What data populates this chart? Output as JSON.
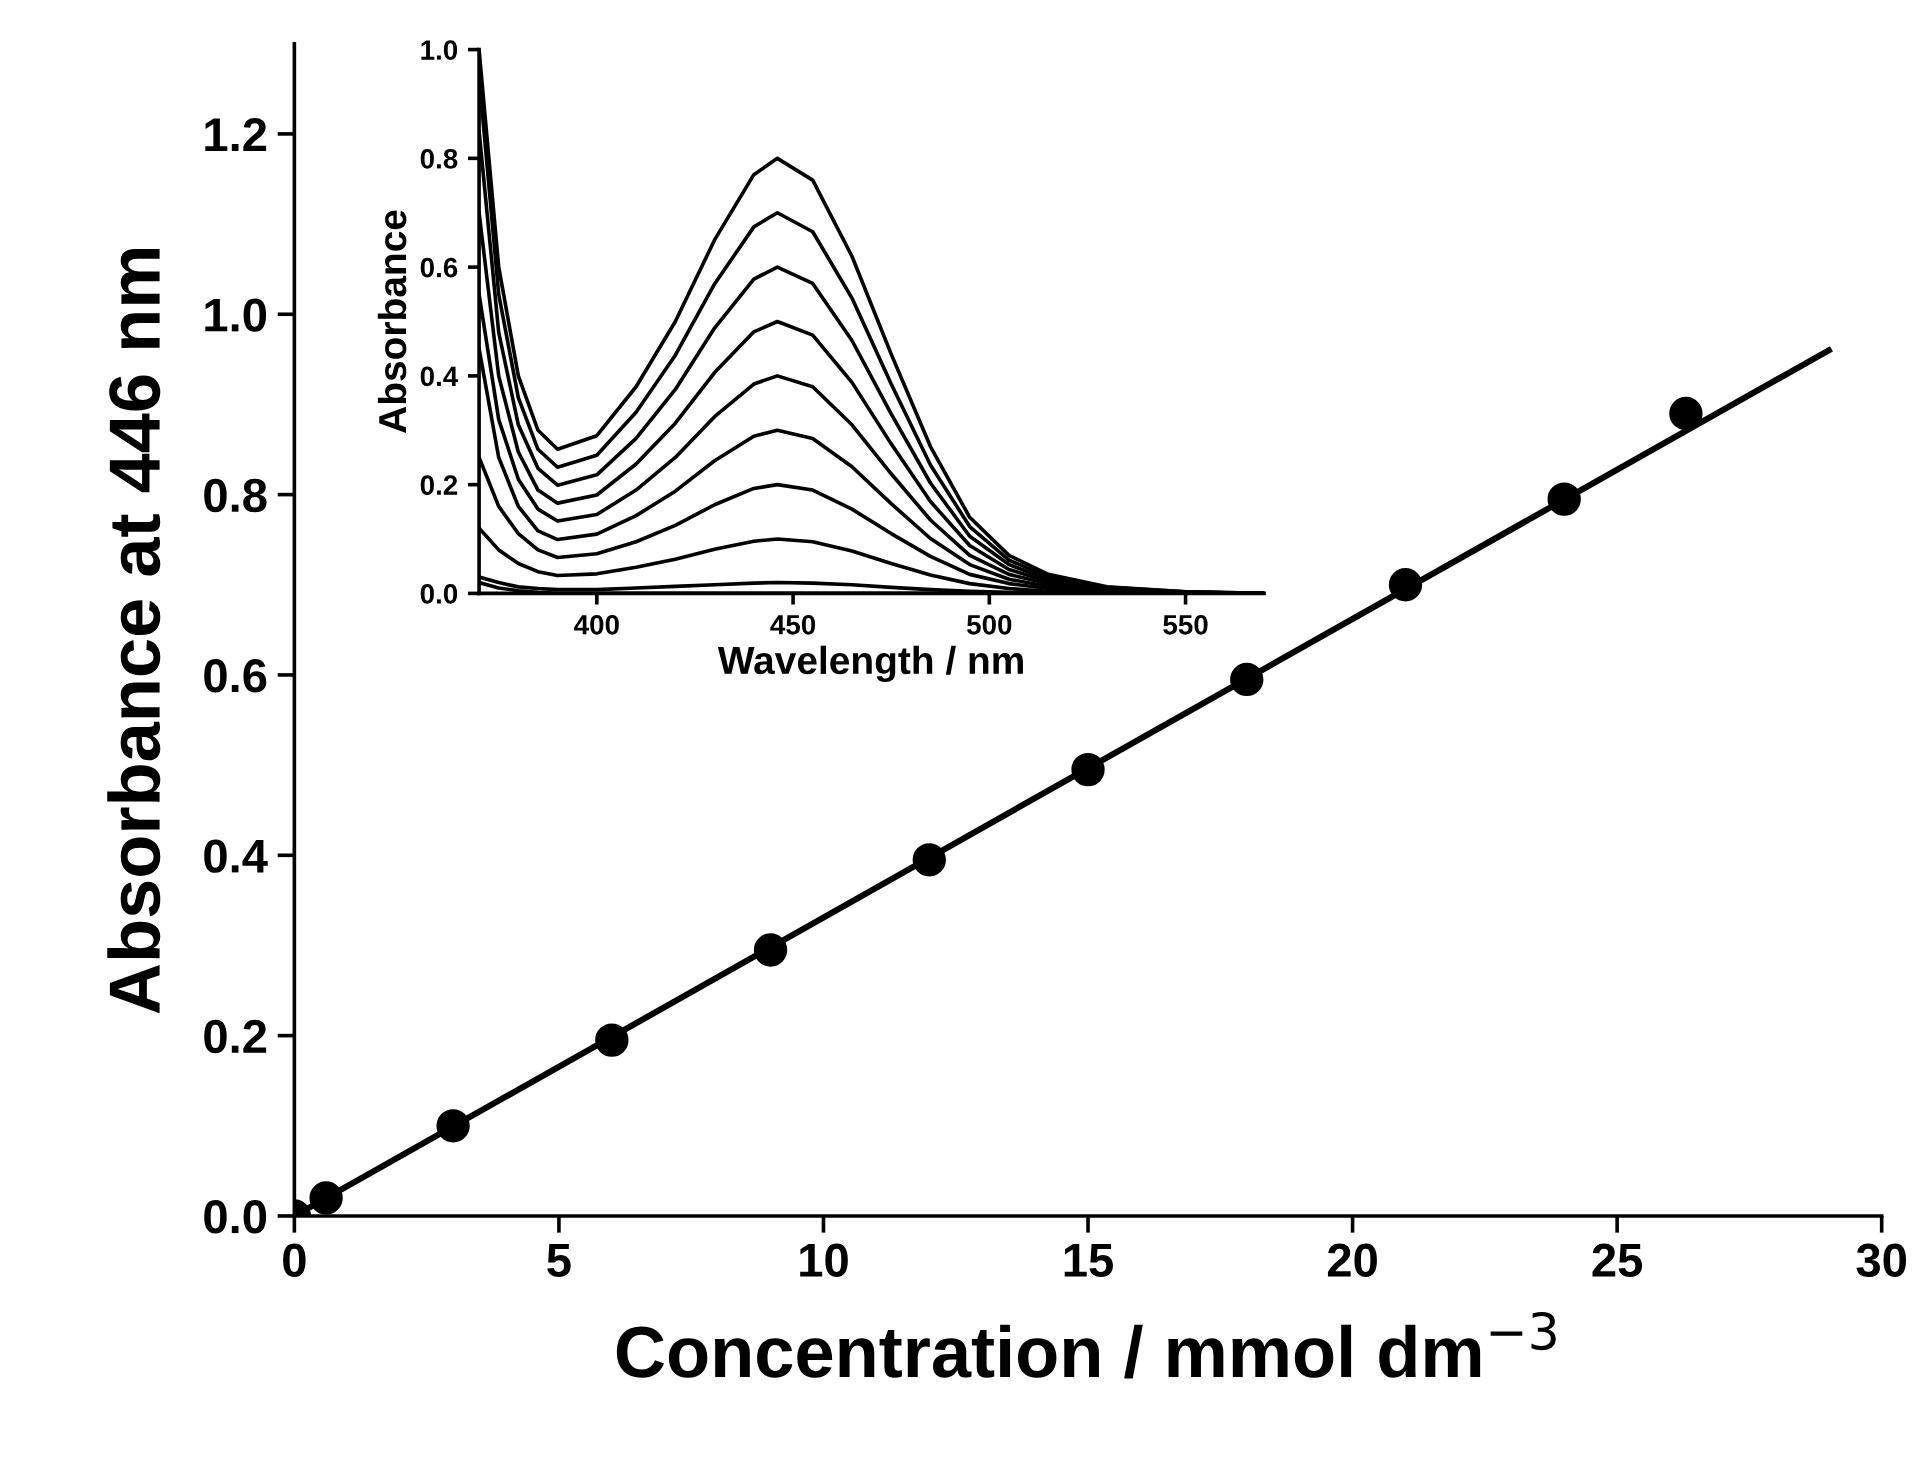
{
  "chart_data": [
    {
      "type": "scatter",
      "xlabel": "Concentration / mmol dm$^{−3}$",
      "ylabel": "Absorbance at 446 nm",
      "xlim": [
        0,
        30
      ],
      "ylim": [
        0,
        1.3
      ],
      "xticks": [
        0,
        5,
        10,
        15,
        20,
        25,
        30
      ],
      "yticks": [
        {
          "value": 0,
          "label": "0.0"
        },
        {
          "value": 0.2,
          "label": "0.2"
        },
        {
          "value": 0.4,
          "label": "0.4"
        },
        {
          "value": 0.6,
          "label": "0.6"
        },
        {
          "value": 0.8,
          "label": "0.8"
        },
        {
          "value": 1.0,
          "label": "1.0"
        },
        {
          "value": 1.2,
          "label": "1.2"
        }
      ],
      "grid": false,
      "legend": false,
      "series": [
        {
          "type": "scatter",
          "marker": "circle",
          "color": "#000000",
          "x": [
            0,
            0.6,
            3,
            6,
            9,
            12,
            15,
            18,
            21,
            24,
            26.3
          ],
          "values": [
            0,
            0.02,
            0.1,
            0.195,
            0.295,
            0.395,
            0.495,
            0.595,
            0.7,
            0.795,
            0.89
          ]
        },
        {
          "type": "line",
          "marker": "none",
          "color": "#000000",
          "x": [
            0,
            29
          ],
          "values": [
            0,
            0.96
          ]
        }
      ]
    },
    {
      "type": "line",
      "xlabel": "Wavelength / nm",
      "ylabel": "Absorbance",
      "xlim": [
        370,
        570
      ],
      "ylim": [
        0,
        1.0
      ],
      "xticks": [
        400,
        450,
        500,
        550
      ],
      "yticks": [
        {
          "value": 0,
          "label": "0.0"
        },
        {
          "value": 0.2,
          "label": "0.2"
        },
        {
          "value": 0.4,
          "label": "0.4"
        },
        {
          "value": 0.6,
          "label": "0.6"
        },
        {
          "value": 0.8,
          "label": "0.8"
        },
        {
          "value": 1.0,
          "label": "1.0"
        }
      ],
      "grid": false,
      "legend": false,
      "marker": "none",
      "x": [
        370,
        375,
        380,
        385,
        390,
        400,
        410,
        420,
        430,
        440,
        446,
        455,
        465,
        475,
        485,
        495,
        505,
        515,
        530,
        550,
        570
      ],
      "series": [
        {
          "color": "#000000",
          "values": [
            1.0,
            0.6,
            0.4,
            0.3,
            0.265,
            0.29,
            0.38,
            0.5,
            0.65,
            0.77,
            0.8,
            0.76,
            0.62,
            0.44,
            0.27,
            0.14,
            0.07,
            0.035,
            0.012,
            0.003,
            0.0
          ]
        },
        {
          "color": "#000000",
          "values": [
            0.95,
            0.55,
            0.36,
            0.265,
            0.232,
            0.254,
            0.333,
            0.438,
            0.569,
            0.674,
            0.7,
            0.665,
            0.543,
            0.385,
            0.236,
            0.123,
            0.061,
            0.031,
            0.011,
            0.003,
            0.0
          ]
        },
        {
          "color": "#000000",
          "values": [
            0.85,
            0.48,
            0.31,
            0.23,
            0.199,
            0.218,
            0.285,
            0.375,
            0.488,
            0.578,
            0.6,
            0.57,
            0.465,
            0.33,
            0.203,
            0.105,
            0.053,
            0.026,
            0.009,
            0.002,
            0.0
          ]
        },
        {
          "color": "#000000",
          "values": [
            0.7,
            0.4,
            0.26,
            0.19,
            0.166,
            0.181,
            0.238,
            0.313,
            0.406,
            0.481,
            0.5,
            0.475,
            0.388,
            0.275,
            0.169,
            0.088,
            0.044,
            0.022,
            0.008,
            0.002,
            0.0
          ]
        },
        {
          "color": "#000000",
          "values": [
            0.55,
            0.32,
            0.21,
            0.155,
            0.133,
            0.145,
            0.19,
            0.25,
            0.325,
            0.385,
            0.4,
            0.38,
            0.31,
            0.22,
            0.135,
            0.07,
            0.035,
            0.018,
            0.006,
            0.002,
            0.0
          ]
        },
        {
          "color": "#000000",
          "values": [
            0.45,
            0.25,
            0.16,
            0.115,
            0.099,
            0.109,
            0.143,
            0.188,
            0.244,
            0.289,
            0.3,
            0.285,
            0.233,
            0.165,
            0.101,
            0.053,
            0.026,
            0.013,
            0.005,
            0.001,
            0.0
          ]
        },
        {
          "color": "#000000",
          "values": [
            0.25,
            0.16,
            0.11,
            0.08,
            0.066,
            0.073,
            0.095,
            0.125,
            0.163,
            0.193,
            0.2,
            0.19,
            0.155,
            0.11,
            0.068,
            0.035,
            0.018,
            0.009,
            0.003,
            0.001,
            0.0
          ]
        },
        {
          "color": "#000000",
          "values": [
            0.12,
            0.08,
            0.055,
            0.04,
            0.033,
            0.036,
            0.048,
            0.063,
            0.081,
            0.096,
            0.1,
            0.095,
            0.078,
            0.055,
            0.034,
            0.018,
            0.009,
            0.004,
            0.002,
            0.0,
            0.0
          ]
        },
        {
          "color": "#000000",
          "values": [
            0.03,
            0.02,
            0.012,
            0.009,
            0.007,
            0.007,
            0.01,
            0.013,
            0.016,
            0.019,
            0.02,
            0.019,
            0.016,
            0.011,
            0.007,
            0.004,
            0.002,
            0.001,
            0.0,
            0.0,
            0.0
          ]
        },
        {
          "color": "#000000",
          "values": [
            0.02,
            0.01,
            0.005,
            0.002,
            0.0,
            0.0,
            0.0,
            0.0,
            0.0,
            0.0,
            0.0,
            0.0,
            0.0,
            0.0,
            0.0,
            0.0,
            0.0,
            0.0,
            0.0,
            0.0,
            0.0
          ]
        }
      ]
    }
  ]
}
